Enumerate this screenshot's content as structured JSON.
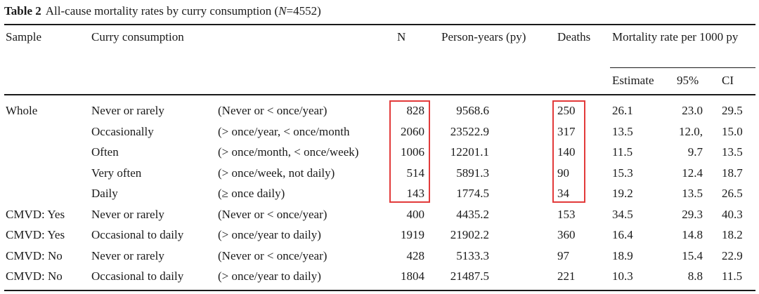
{
  "caption": {
    "label": "Table 2",
    "text_before": "All-cause mortality rates by curry consumption (",
    "n_symbol": "N",
    "text_after": "=4552)"
  },
  "headers": {
    "sample": "Sample",
    "curry": "Curry consumption",
    "n": "N",
    "py": "Person-years (py)",
    "deaths": "Deaths",
    "mortality": "Mortality rate per 1000 py",
    "estimate": "Estimate",
    "p95": "95%",
    "ci": "CI"
  },
  "rows": [
    {
      "sample": "Whole",
      "curry": "Never or rarely",
      "freq": "(Never or < once/year)",
      "n": "828",
      "py": "9568.6",
      "deaths": "250",
      "est": "26.1",
      "lo": "23.0",
      "hi": "29.5"
    },
    {
      "sample": "",
      "curry": "Occasionally",
      "freq": "(> once/year, < once/month",
      "n": "2060",
      "py": "23522.9",
      "deaths": "317",
      "est": "13.5",
      "lo": "12.0,",
      "hi": "15.0"
    },
    {
      "sample": "",
      "curry": "Often",
      "freq": "(> once/month, < once/week)",
      "n": "1006",
      "py": "12201.1",
      "deaths": "140",
      "est": "11.5",
      "lo": "9.7",
      "hi": "13.5"
    },
    {
      "sample": "",
      "curry": "Very often",
      "freq": "(> once/week, not daily)",
      "n": "514",
      "py": "5891.3",
      "deaths": "90",
      "est": "15.3",
      "lo": "12.4",
      "hi": "18.7"
    },
    {
      "sample": "",
      "curry": "Daily",
      "freq": "(≥ once daily)",
      "n": "143",
      "py": "1774.5",
      "deaths": "34",
      "est": "19.2",
      "lo": "13.5",
      "hi": "26.5"
    },
    {
      "sample": "CMVD: Yes",
      "curry": "Never or rarely",
      "freq": "(Never or < once/year)",
      "n": "400",
      "py": "4435.2",
      "deaths": "153",
      "est": "34.5",
      "lo": "29.3",
      "hi": "40.3"
    },
    {
      "sample": "CMVD: Yes",
      "curry": "Occasional to daily",
      "freq": "(> once/year to daily)",
      "n": "1919",
      "py": "21902.2",
      "deaths": "360",
      "est": "16.4",
      "lo": "14.8",
      "hi": "18.2"
    },
    {
      "sample": "CMVD: No",
      "curry": "Never or rarely",
      "freq": "(Never or < once/year)",
      "n": "428",
      "py": "5133.3",
      "deaths": "97",
      "est": "18.9",
      "lo": "15.4",
      "hi": "22.9"
    },
    {
      "sample": "CMVD: No",
      "curry": "Occasional to daily",
      "freq": "(> once/year to daily)",
      "n": "1804",
      "py": "21487.5",
      "deaths": "221",
      "est": "10.3",
      "lo": "8.8",
      "hi": "11.5"
    }
  ],
  "highlight_color": "#e23a3a"
}
